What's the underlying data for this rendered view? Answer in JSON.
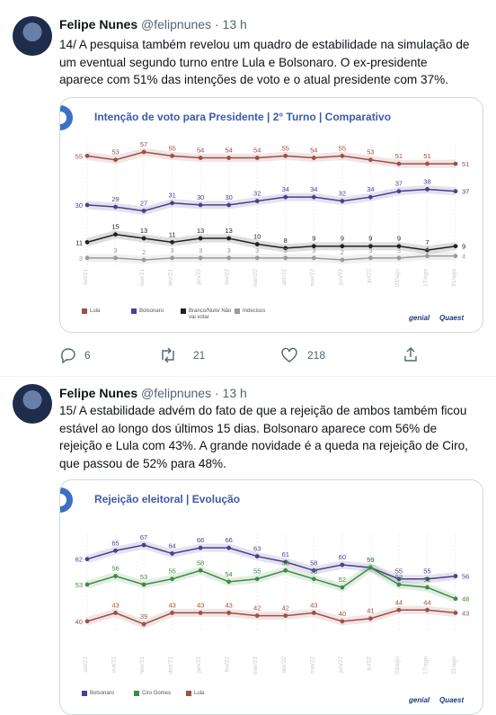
{
  "tweets": [
    {
      "name": "Felipe Nunes",
      "handle": "@felipnunes",
      "time": "13 h",
      "text": [
        "14/ A pesquisa também revelou um quadro de estabilidade na simulação de",
        "um eventual segundo turno entre Lula e Bolsonaro. O ex-presidente",
        "aparece com 51% das intenções de voto e o atual presidente com 37%."
      ],
      "chart": {
        "type": "line",
        "title": "Intenção de voto para Presidente | 2° Turno | Comparativo",
        "categories": [
          "set/21",
          null,
          "nov/21",
          "dez/21",
          "jan/22",
          "fev/22",
          "mar/22",
          "abr/22",
          "mai/22",
          "jun/22",
          "jul/22",
          "03/ago",
          "17/ago",
          "31/ago"
        ],
        "series": [
          {
            "name": "Lula",
            "color": "#9e4f47",
            "values": [
              55,
              53,
              57,
              55,
              54,
              54,
              54,
              55,
              54,
              55,
              53,
              51,
              51,
              51
            ]
          },
          {
            "name": "Bolsonaro",
            "color": "#4a3f8f",
            "values": [
              30,
              29,
              27,
              31,
              30,
              30,
              32,
              34,
              34,
              32,
              34,
              37,
              38,
              37
            ]
          },
          {
            "name": "Branco/Nulo/ Não vai votar",
            "color": "#222222",
            "values": [
              11,
              15,
              13,
              11,
              13,
              13,
              10,
              8,
              9,
              9,
              9,
              9,
              7,
              9
            ]
          },
          {
            "name": "Indecisos",
            "color": "#9a9a9a",
            "values": [
              3,
              3,
              2,
              3,
              3,
              3,
              3,
              3,
              3,
              2,
              3,
              3,
              4,
              4
            ]
          }
        ],
        "logos": [
          "genial",
          "Quaest"
        ]
      },
      "actions": {
        "replies": "6",
        "retweets": "21",
        "likes": "218"
      }
    },
    {
      "name": "Felipe Nunes",
      "handle": "@felipnunes",
      "time": "13 h",
      "text": [
        "15/ A estabilidade advém do fato de que a rejeição de ambos também ficou",
        "estável ao longo dos últimos 15 dias. Bolsonaro aparece com 56% de",
        "rejeição e Lula com 43%. A grande novidade é a queda na rejeição de Ciro,",
        "que passou de 52% para 48%."
      ],
      "chart": {
        "type": "line",
        "title": "Rejeição eleitoral | Evolução",
        "categories": [
          "set/21",
          "out/21",
          "nov/21",
          "dez/21",
          "jan/22",
          "fev/22",
          "mar/22",
          "abr/22",
          "mai/22",
          "jun/22",
          "jul/22",
          "03/ago",
          "17/ago",
          "31/ago"
        ],
        "series": [
          {
            "name": "Bolsonaro",
            "color": "#4a3f8f",
            "values": [
              62,
              65,
              67,
              64,
              66,
              66,
              63,
              61,
              58,
              60,
              59,
              55,
              55,
              56
            ]
          },
          {
            "name": "Ciro Gomes",
            "color": "#3f8a45",
            "values": [
              53,
              56,
              53,
              55,
              58,
              54,
              55,
              58,
              55,
              52,
              59,
              53,
              52,
              48
            ]
          },
          {
            "name": "Lula",
            "color": "#9e4f47",
            "values": [
              40,
              43,
              39,
              43,
              43,
              43,
              42,
              42,
              43,
              40,
              41,
              44,
              44,
              43
            ]
          }
        ],
        "logos": [
          "genial",
          "Quaest"
        ]
      }
    }
  ]
}
